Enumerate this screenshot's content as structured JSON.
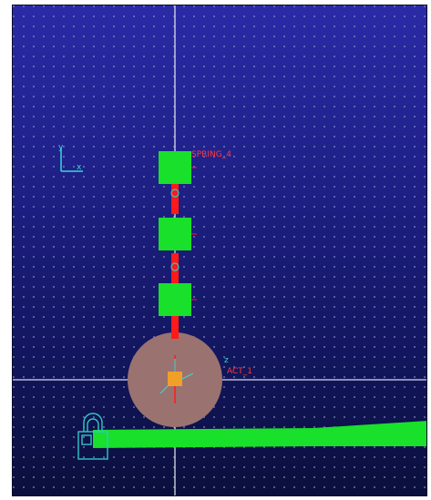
{
  "app": {
    "title": ""
  },
  "viewport": {
    "background_top": "#2a2aa6",
    "background_bottom": "#0b0f3c",
    "grid": true,
    "grid_dot_color": "#8a8fd0"
  },
  "colors": {
    "body_fill": "#19e02a",
    "joint_color": "#ff1a1a",
    "ground_color": "#19e02a",
    "wheel_fill": "#9a7270",
    "marker_fill": "#f0a028",
    "label_red": "#ff3b3b",
    "triad_cyan": "#3ad7d7",
    "crosshair": "#d8dbe8",
    "icon_cyan": "#2fc8c8"
  },
  "labels": {
    "top_body": "SPRING_4",
    "wheel": "ACT_1"
  },
  "icons": {
    "triad": "coordinate-triad-icon",
    "ground": "ground-lock-icon",
    "wheel_marker": "marker-icon"
  }
}
